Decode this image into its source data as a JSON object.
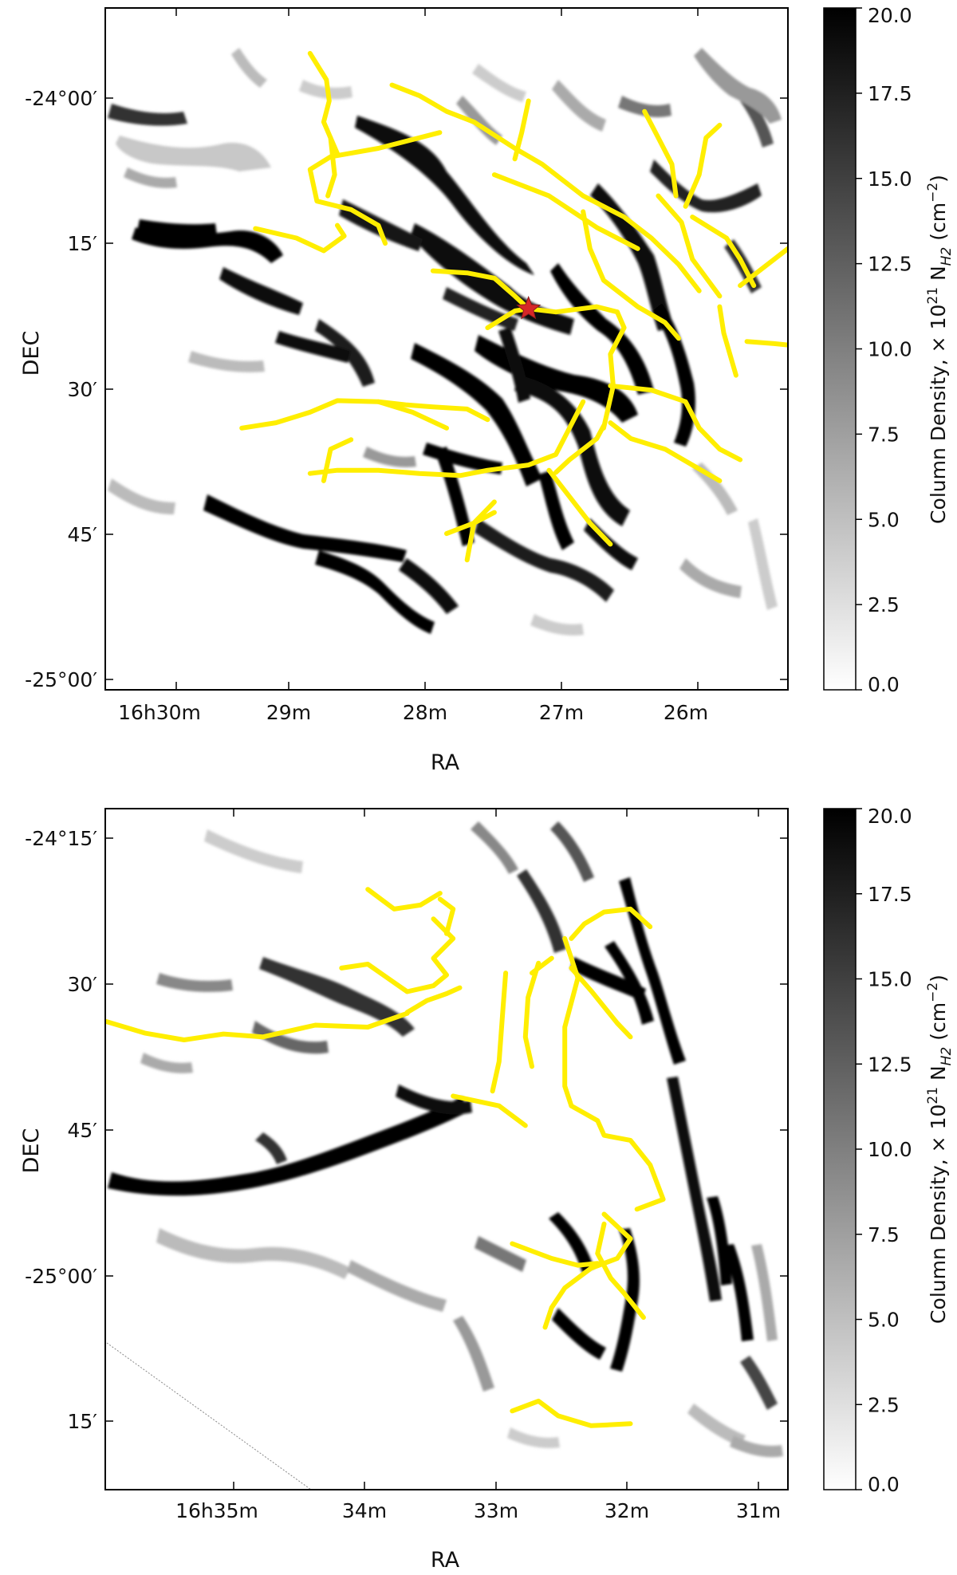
{
  "chart_data": [
    {
      "type": "heatmap",
      "id": "top",
      "xlabel": "RA",
      "ylabel": "DEC",
      "x_ticks": [
        "16h30m",
        "29m",
        "28m",
        "27m",
        "26m"
      ],
      "y_ticks": [
        "-24°00′",
        "15′",
        "30′",
        "45′",
        "-25°00′"
      ],
      "x_range_min": [
        30.6,
        25.6
      ],
      "y_range_arcmin": [
        -1.8,
        62.8
      ],
      "colorbar": {
        "label_main": "Column Density, × 10",
        "label_sup": "21",
        "label_species": " N",
        "label_sub": "H2",
        "label_units": " (cm",
        "label_units_sup": "−2",
        "label_units_end": ")",
        "ticks": [
          "0.0",
          "2.5",
          "5.0",
          "7.5",
          "10.0",
          "12.5",
          "15.0",
          "17.5",
          "20.0"
        ],
        "range": [
          0.0,
          20.0
        ],
        "colormap": "gray_r"
      },
      "overlay_color": "#ffee00",
      "marker": {
        "ra_min": 27.5,
        "dec_arcmin": 26.7,
        "color": "#d62728",
        "symbol": "star"
      },
      "filaments": [
        [
          [
            29.1,
            2.5
          ],
          [
            28.98,
            5
          ],
          [
            28.96,
            7
          ],
          [
            29.0,
            9
          ],
          [
            28.9,
            12
          ]
        ],
        [
          [
            28.95,
            10.5
          ],
          [
            28.92,
            14
          ],
          [
            28.97,
            16
          ]
        ],
        [
          [
            29.5,
            19.1
          ],
          [
            29.2,
            20
          ],
          [
            29.0,
            21.2
          ],
          [
            28.85,
            19.8
          ],
          [
            28.9,
            18.8
          ]
        ],
        [
          [
            28.5,
            5.5
          ],
          [
            28.3,
            6.5
          ],
          [
            28.1,
            8
          ],
          [
            27.9,
            9
          ],
          [
            27.6,
            11.5
          ],
          [
            27.4,
            13
          ],
          [
            27.1,
            16
          ],
          [
            26.8,
            18
          ],
          [
            26.6,
            20
          ],
          [
            26.4,
            22.5
          ],
          [
            26.25,
            25
          ]
        ],
        [
          [
            27.75,
            14
          ],
          [
            27.35,
            16
          ],
          [
            27.0,
            19
          ],
          [
            26.7,
            21
          ]
        ],
        [
          [
            27.5,
            7
          ],
          [
            27.55,
            10
          ],
          [
            27.6,
            12.5
          ]
        ],
        [
          [
            28.15,
            10
          ],
          [
            28.6,
            11.5
          ],
          [
            28.95,
            12.3
          ],
          [
            29.1,
            13.5
          ],
          [
            29.05,
            16.5
          ],
          [
            28.8,
            17.3
          ],
          [
            28.6,
            18.8
          ],
          [
            28.55,
            20.5
          ]
        ],
        [
          [
            26.65,
            8
          ],
          [
            26.55,
            10.5
          ],
          [
            26.45,
            13
          ],
          [
            26.42,
            16
          ]
        ],
        [
          [
            26.55,
            16
          ],
          [
            26.38,
            18.5
          ],
          [
            26.3,
            22
          ],
          [
            26.1,
            25.5
          ]
        ],
        [
          [
            26.1,
            9.3
          ],
          [
            26.2,
            10.5
          ],
          [
            26.25,
            14
          ],
          [
            26.35,
            17
          ]
        ],
        [
          [
            26.3,
            18
          ],
          [
            26.05,
            20
          ],
          [
            25.95,
            22
          ],
          [
            25.85,
            24.5
          ]
        ],
        [
          [
            25.6,
            21
          ],
          [
            25.8,
            23
          ],
          [
            25.95,
            24.5
          ]
        ],
        [
          [
            25.55,
            30.2
          ],
          [
            25.7,
            30
          ],
          [
            25.9,
            29.8
          ]
        ],
        [
          [
            26.1,
            26.5
          ],
          [
            26.07,
            29
          ],
          [
            25.98,
            33
          ]
        ],
        [
          [
            27.1,
            17.5
          ],
          [
            27.05,
            21
          ],
          [
            26.95,
            24
          ],
          [
            26.7,
            26.5
          ],
          [
            26.5,
            28
          ],
          [
            26.4,
            29.5
          ]
        ],
        [
          [
            28.2,
            23.1
          ],
          [
            27.95,
            23.3
          ],
          [
            27.75,
            23.8
          ],
          [
            27.6,
            25.5
          ],
          [
            27.5,
            26.7
          ],
          [
            27.3,
            27
          ],
          [
            27.0,
            26.5
          ],
          [
            26.85,
            27
          ]
        ],
        [
          [
            27.8,
            28.5
          ],
          [
            27.6,
            26.9
          ],
          [
            27.5,
            26.7
          ]
        ],
        [
          [
            26.85,
            27
          ],
          [
            26.8,
            28.5
          ],
          [
            26.9,
            31
          ],
          [
            26.88,
            34
          ],
          [
            26.95,
            38
          ]
        ],
        [
          [
            26.9,
            34
          ],
          [
            26.6,
            34.4
          ],
          [
            26.35,
            35.5
          ],
          [
            26.25,
            38
          ],
          [
            26.1,
            40
          ],
          [
            25.95,
            41
          ]
        ],
        [
          [
            26.9,
            37.5
          ],
          [
            26.75,
            39
          ],
          [
            26.5,
            40
          ],
          [
            26.3,
            41.5
          ],
          [
            26.1,
            43
          ]
        ],
        [
          [
            27.1,
            35.5
          ],
          [
            27.2,
            38
          ],
          [
            27.3,
            40.5
          ],
          [
            27.5,
            41.5
          ],
          [
            27.8,
            42
          ],
          [
            28.0,
            42.5
          ],
          [
            28.3,
            42.3
          ],
          [
            28.6,
            42
          ],
          [
            28.9,
            42
          ],
          [
            29.1,
            42.3
          ]
        ],
        [
          [
            29.6,
            38
          ],
          [
            29.35,
            37.5
          ],
          [
            29.1,
            36.5
          ],
          [
            28.9,
            35.4
          ],
          [
            28.6,
            35.5
          ],
          [
            28.4,
            35.8
          ],
          [
            28.2,
            36
          ],
          [
            27.95,
            36.2
          ],
          [
            27.8,
            37.2
          ]
        ],
        [
          [
            28.6,
            35.5
          ],
          [
            28.35,
            36.5
          ],
          [
            28.1,
            38
          ]
        ],
        [
          [
            29.0,
            43
          ],
          [
            28.95,
            40
          ],
          [
            28.8,
            39.1
          ]
        ],
        [
          [
            26.95,
            37.8
          ],
          [
            27.0,
            39
          ],
          [
            27.2,
            41
          ],
          [
            27.3,
            42.2
          ]
        ],
        [
          [
            27.35,
            42
          ],
          [
            27.2,
            44.5
          ],
          [
            27.05,
            47
          ],
          [
            26.9,
            49
          ]
        ],
        [
          [
            27.75,
            46
          ],
          [
            27.9,
            47
          ],
          [
            27.95,
            50.5
          ]
        ],
        [
          [
            28.1,
            48
          ],
          [
            27.9,
            47
          ],
          [
            27.75,
            45
          ]
        ]
      ]
    },
    {
      "type": "heatmap",
      "id": "bottom",
      "xlabel": "RA",
      "ylabel": "DEC",
      "x_ticks": [
        "16h35m",
        "34m",
        "33m",
        "32m",
        "31m"
      ],
      "y_ticks": [
        "-24°15′",
        "30′",
        "45′",
        "-25°00′",
        "15′"
      ],
      "x_range_min": [
        36.0,
        30.8
      ],
      "y_range_arcmin": [
        13.8,
        83.0
      ],
      "colorbar": {
        "label_main": "Column Density, × 10",
        "label_sup": "21",
        "label_species": " N",
        "label_sub": "H2",
        "label_units": " (cm",
        "label_units_sup": "−2",
        "label_units_end": ")",
        "ticks": [
          "0.0",
          "2.5",
          "5.0",
          "7.5",
          "10.0",
          "12.5",
          "15.0",
          "17.5",
          "20.0"
        ],
        "range": [
          0.0,
          20.0
        ],
        "colormap": "gray_r"
      },
      "overlay_color": "#ffee00",
      "filaments": [
        [
          [
            36.0,
            35.4
          ],
          [
            35.7,
            36.6
          ],
          [
            35.4,
            37.3
          ],
          [
            35.1,
            36.7
          ],
          [
            34.8,
            37
          ],
          [
            34.4,
            35.8
          ],
          [
            34.0,
            36
          ],
          [
            33.7,
            34.6
          ]
        ],
        [
          [
            33.7,
            34.5
          ],
          [
            33.55,
            33.3
          ],
          [
            33.4,
            32.6
          ],
          [
            33.3,
            32
          ]
        ],
        [
          [
            34.2,
            30
          ],
          [
            34.0,
            29.6
          ],
          [
            33.85,
            31
          ],
          [
            33.7,
            32.4
          ],
          [
            33.5,
            31.8
          ],
          [
            33.4,
            30.7
          ],
          [
            33.5,
            29
          ],
          [
            33.35,
            27
          ],
          [
            33.5,
            25
          ]
        ],
        [
          [
            34.0,
            22
          ],
          [
            33.8,
            24
          ],
          [
            33.6,
            23.6
          ],
          [
            33.45,
            22.4
          ]
        ],
        [
          [
            33.45,
            23
          ],
          [
            33.35,
            24
          ],
          [
            33.4,
            26.5
          ]
        ],
        [
          [
            32.95,
            30.5
          ],
          [
            32.97,
            34
          ],
          [
            33.0,
            39.5
          ],
          [
            33.05,
            42.5
          ]
        ],
        [
          [
            33.35,
            43
          ],
          [
            33.0,
            44
          ],
          [
            32.8,
            46
          ]
        ],
        [
          [
            32.7,
            29.5
          ],
          [
            32.78,
            33
          ],
          [
            32.8,
            37
          ],
          [
            32.75,
            40
          ]
        ],
        [
          [
            32.6,
            29
          ],
          [
            32.75,
            30.5
          ]
        ],
        [
          [
            32.5,
            27
          ],
          [
            32.4,
            31
          ],
          [
            32.5,
            36
          ],
          [
            32.5,
            42
          ],
          [
            32.45,
            44
          ]
        ],
        [
          [
            32.45,
            30
          ],
          [
            32.3,
            32.3
          ],
          [
            32.1,
            35.6
          ],
          [
            32.0,
            37
          ]
        ],
        [
          [
            32.45,
            27
          ],
          [
            32.35,
            25.5
          ],
          [
            32.2,
            24.3
          ],
          [
            32.0,
            24
          ],
          [
            31.85,
            25.8
          ]
        ],
        [
          [
            32.45,
            44
          ],
          [
            32.25,
            45.5
          ],
          [
            32.2,
            47
          ],
          [
            32.0,
            47.5
          ],
          [
            31.85,
            50
          ],
          [
            31.75,
            53.5
          ],
          [
            31.95,
            54.5
          ]
        ],
        [
          [
            32.2,
            55
          ],
          [
            32.0,
            57.5
          ],
          [
            32.1,
            59.5
          ],
          [
            32.3,
            60.5
          ],
          [
            32.5,
            62.5
          ],
          [
            32.6,
            64.5
          ],
          [
            32.65,
            66.5
          ]
        ],
        [
          [
            32.2,
            56
          ],
          [
            32.25,
            59
          ],
          [
            32.15,
            61.5
          ],
          [
            32.05,
            63
          ],
          [
            31.9,
            65.5
          ]
        ],
        [
          [
            32.9,
            58
          ],
          [
            32.6,
            59.5
          ],
          [
            32.4,
            60.2
          ],
          [
            32.25,
            60
          ]
        ],
        [
          [
            32.9,
            75
          ],
          [
            32.7,
            74
          ],
          [
            32.55,
            75.5
          ],
          [
            32.3,
            76.5
          ],
          [
            32.0,
            76.3
          ]
        ]
      ]
    }
  ]
}
